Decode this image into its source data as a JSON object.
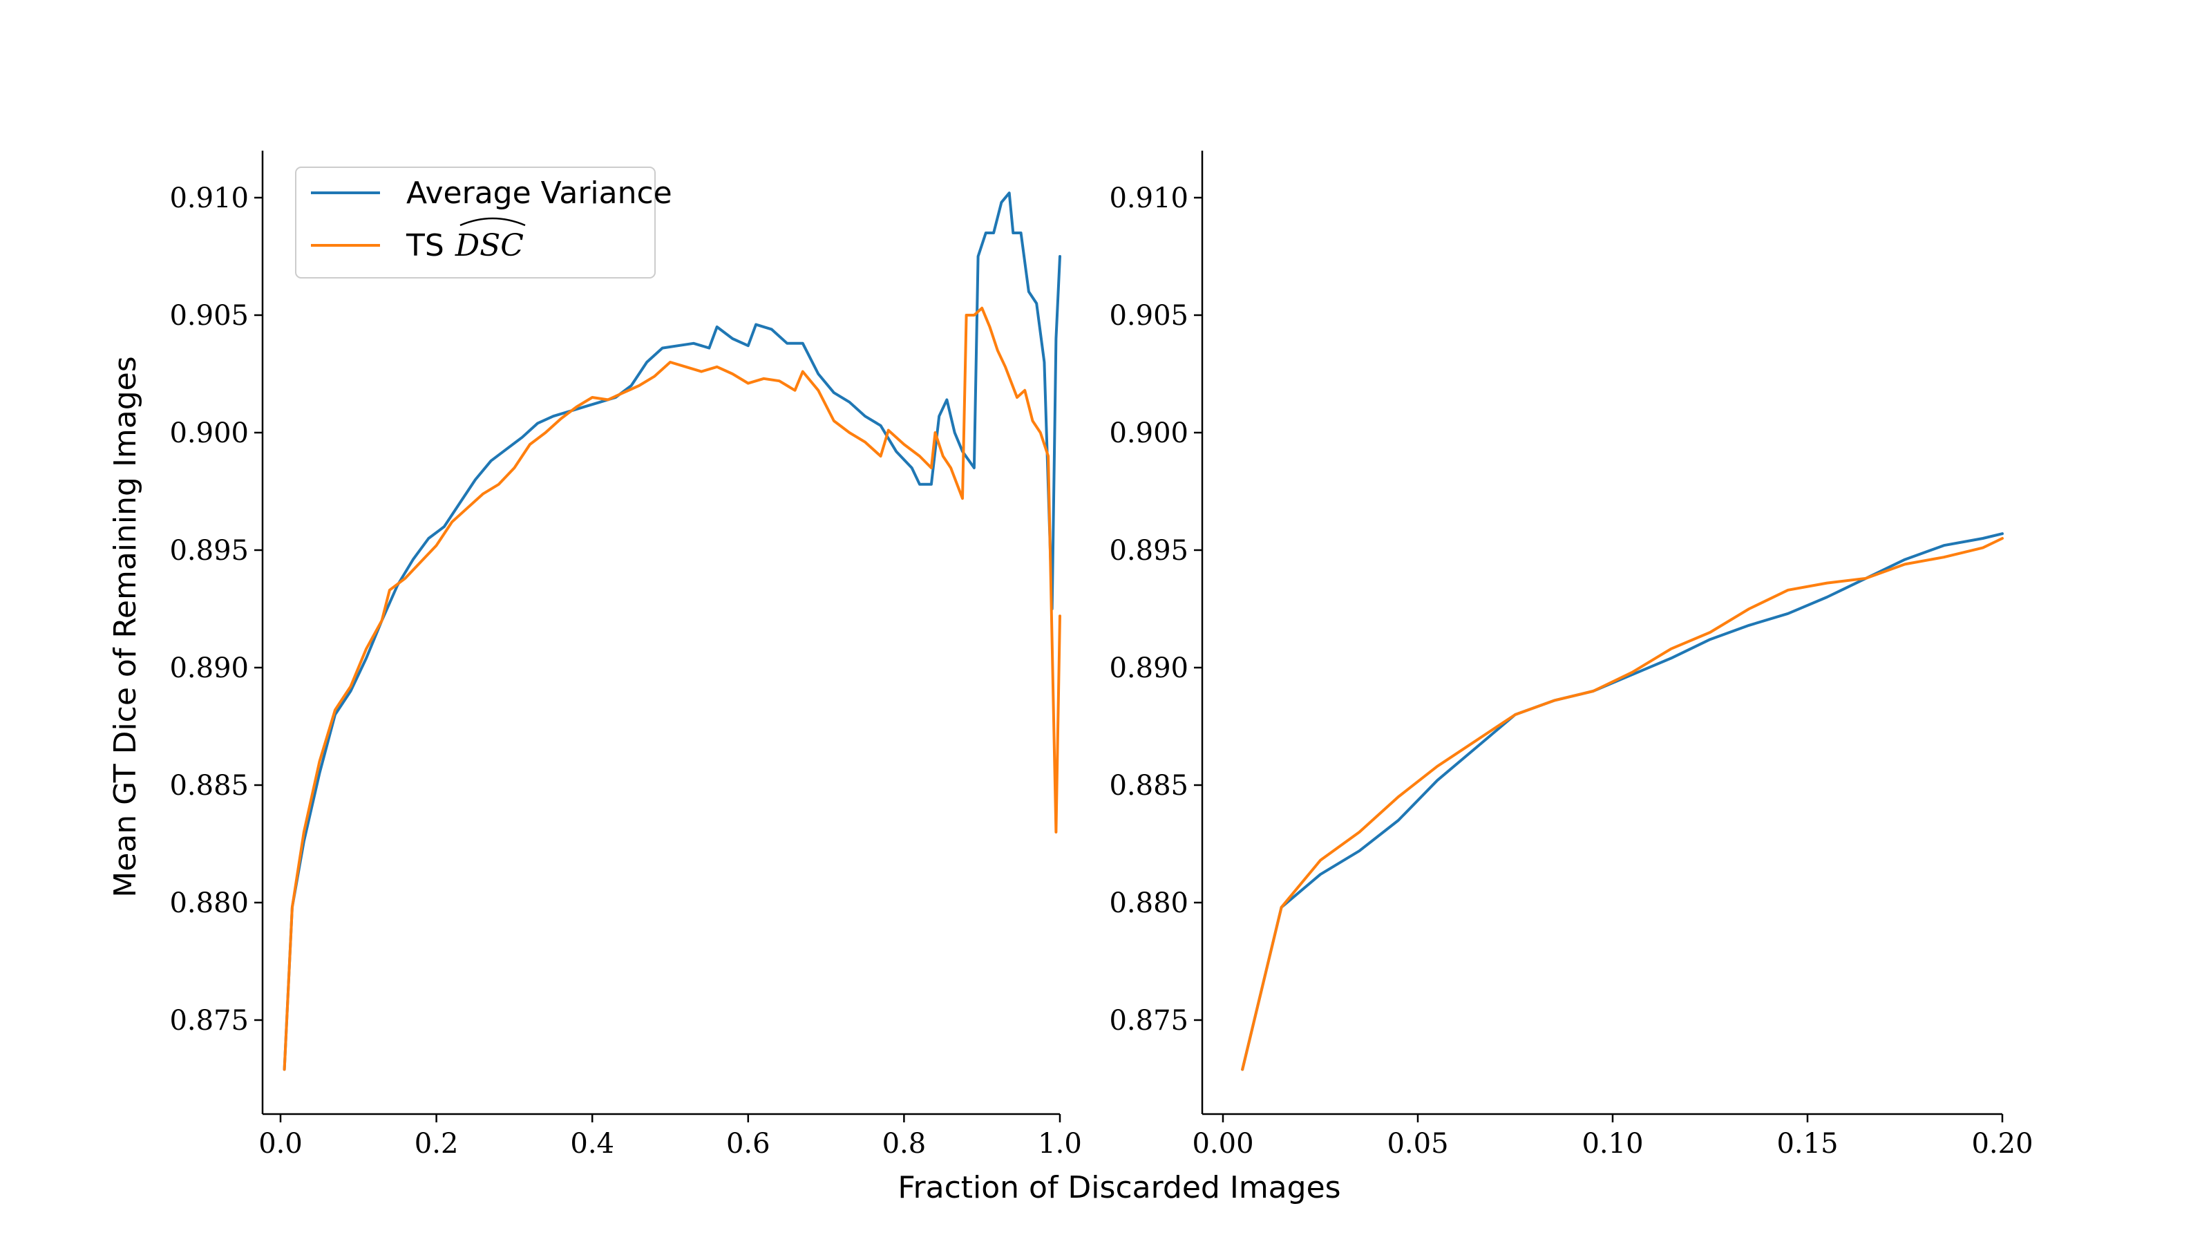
{
  "colors": {
    "series0": "#1f77b4",
    "series1": "#ff7f0e",
    "axis": "#000000",
    "legendBorder": "#cccccc"
  },
  "xlabel": "Fraction of Discarded Images",
  "ylabel": "Mean GT Dice of Remaining Images",
  "legend": {
    "placement": "top-left",
    "entries": [
      {
        "text": "Average Variance"
      },
      {
        "text": "TS",
        "math": "DSC",
        "hat": true
      }
    ]
  },
  "chart_data": [
    {
      "type": "line",
      "xlim": [
        0.0,
        1.0
      ],
      "ylim": [
        0.871,
        0.912
      ],
      "xticks": [
        "0.0",
        "0.2",
        "0.4",
        "0.6",
        "0.8",
        "1.0"
      ],
      "xtick_values": [
        0.0,
        0.2,
        0.4,
        0.6,
        0.8,
        1.0
      ],
      "yticks": [
        "0.875",
        "0.880",
        "0.885",
        "0.890",
        "0.895",
        "0.900",
        "0.905",
        "0.910"
      ],
      "ytick_values": [
        0.875,
        0.88,
        0.885,
        0.89,
        0.895,
        0.9,
        0.905,
        0.91
      ],
      "grid": false,
      "series": [
        {
          "name": "Average Variance",
          "points": [
            [
              0.005,
              0.8729
            ],
            [
              0.015,
              0.8798
            ],
            [
              0.03,
              0.8826
            ],
            [
              0.05,
              0.8855
            ],
            [
              0.07,
              0.888
            ],
            [
              0.09,
              0.889
            ],
            [
              0.11,
              0.8904
            ],
            [
              0.13,
              0.892
            ],
            [
              0.15,
              0.8935
            ],
            [
              0.17,
              0.8946
            ],
            [
              0.19,
              0.8955
            ],
            [
              0.21,
              0.896
            ],
            [
              0.23,
              0.897
            ],
            [
              0.25,
              0.898
            ],
            [
              0.27,
              0.8988
            ],
            [
              0.29,
              0.8993
            ],
            [
              0.31,
              0.8998
            ],
            [
              0.33,
              0.9004
            ],
            [
              0.35,
              0.9007
            ],
            [
              0.37,
              0.9009
            ],
            [
              0.39,
              0.9011
            ],
            [
              0.41,
              0.9013
            ],
            [
              0.43,
              0.9015
            ],
            [
              0.45,
              0.902
            ],
            [
              0.47,
              0.903
            ],
            [
              0.49,
              0.9036
            ],
            [
              0.51,
              0.9037
            ],
            [
              0.53,
              0.9038
            ],
            [
              0.55,
              0.9036
            ],
            [
              0.56,
              0.9045
            ],
            [
              0.58,
              0.904
            ],
            [
              0.6,
              0.9037
            ],
            [
              0.61,
              0.9046
            ],
            [
              0.63,
              0.9044
            ],
            [
              0.65,
              0.9038
            ],
            [
              0.67,
              0.9038
            ],
            [
              0.69,
              0.9025
            ],
            [
              0.71,
              0.9017
            ],
            [
              0.73,
              0.9013
            ],
            [
              0.75,
              0.9007
            ],
            [
              0.77,
              0.9003
            ],
            [
              0.79,
              0.8992
            ],
            [
              0.81,
              0.8985
            ],
            [
              0.82,
              0.8978
            ],
            [
              0.835,
              0.8978
            ],
            [
              0.845,
              0.9007
            ],
            [
              0.855,
              0.9014
            ],
            [
              0.865,
              0.9
            ],
            [
              0.875,
              0.8992
            ],
            [
              0.89,
              0.8985
            ],
            [
              0.895,
              0.9075
            ],
            [
              0.905,
              0.9085
            ],
            [
              0.915,
              0.9085
            ],
            [
              0.925,
              0.9098
            ],
            [
              0.935,
              0.9102
            ],
            [
              0.94,
              0.9085
            ],
            [
              0.95,
              0.9085
            ],
            [
              0.96,
              0.906
            ],
            [
              0.97,
              0.9055
            ],
            [
              0.98,
              0.903
            ],
            [
              0.99,
              0.8925
            ],
            [
              0.995,
              0.904
            ],
            [
              1.0,
              0.9075
            ]
          ]
        },
        {
          "name": "TS DSC",
          "points": [
            [
              0.005,
              0.8729
            ],
            [
              0.015,
              0.8798
            ],
            [
              0.03,
              0.883
            ],
            [
              0.05,
              0.886
            ],
            [
              0.07,
              0.8882
            ],
            [
              0.09,
              0.8892
            ],
            [
              0.11,
              0.8908
            ],
            [
              0.13,
              0.892
            ],
            [
              0.14,
              0.8933
            ],
            [
              0.16,
              0.8938
            ],
            [
              0.18,
              0.8945
            ],
            [
              0.2,
              0.8952
            ],
            [
              0.22,
              0.8962
            ],
            [
              0.24,
              0.8968
            ],
            [
              0.26,
              0.8974
            ],
            [
              0.28,
              0.8978
            ],
            [
              0.3,
              0.8985
            ],
            [
              0.32,
              0.8995
            ],
            [
              0.34,
              0.9
            ],
            [
              0.36,
              0.9006
            ],
            [
              0.38,
              0.9011
            ],
            [
              0.4,
              0.9015
            ],
            [
              0.42,
              0.9014
            ],
            [
              0.44,
              0.9017
            ],
            [
              0.46,
              0.902
            ],
            [
              0.48,
              0.9024
            ],
            [
              0.5,
              0.903
            ],
            [
              0.52,
              0.9028
            ],
            [
              0.54,
              0.9026
            ],
            [
              0.56,
              0.9028
            ],
            [
              0.58,
              0.9025
            ],
            [
              0.6,
              0.9021
            ],
            [
              0.62,
              0.9023
            ],
            [
              0.64,
              0.9022
            ],
            [
              0.66,
              0.9018
            ],
            [
              0.67,
              0.9026
            ],
            [
              0.69,
              0.9018
            ],
            [
              0.71,
              0.9005
            ],
            [
              0.73,
              0.9
            ],
            [
              0.75,
              0.8996
            ],
            [
              0.77,
              0.899
            ],
            [
              0.78,
              0.9001
            ],
            [
              0.8,
              0.8995
            ],
            [
              0.82,
              0.899
            ],
            [
              0.835,
              0.8985
            ],
            [
              0.84,
              0.9
            ],
            [
              0.85,
              0.899
            ],
            [
              0.86,
              0.8985
            ],
            [
              0.875,
              0.8972
            ],
            [
              0.88,
              0.905
            ],
            [
              0.89,
              0.905
            ],
            [
              0.9,
              0.9053
            ],
            [
              0.91,
              0.9045
            ],
            [
              0.92,
              0.9035
            ],
            [
              0.93,
              0.9028
            ],
            [
              0.945,
              0.9015
            ],
            [
              0.955,
              0.9018
            ],
            [
              0.965,
              0.9005
            ],
            [
              0.975,
              0.9
            ],
            [
              0.985,
              0.899
            ],
            [
              0.995,
              0.883
            ],
            [
              1.0,
              0.8922
            ]
          ]
        }
      ]
    },
    {
      "type": "line",
      "xlim": [
        0.0,
        0.2
      ],
      "ylim": [
        0.871,
        0.912
      ],
      "xticks": [
        "0.00",
        "0.05",
        "0.10",
        "0.15",
        "0.20"
      ],
      "xtick_values": [
        0.0,
        0.05,
        0.1,
        0.15,
        0.2
      ],
      "yticks": [
        "0.875",
        "0.880",
        "0.885",
        "0.890",
        "0.895",
        "0.900",
        "0.905",
        "0.910"
      ],
      "ytick_values": [
        0.875,
        0.88,
        0.885,
        0.89,
        0.895,
        0.9,
        0.905,
        0.91
      ],
      "grid": false,
      "series": [
        {
          "name": "Average Variance",
          "points": [
            [
              0.005,
              0.8729
            ],
            [
              0.015,
              0.8798
            ],
            [
              0.025,
              0.8812
            ],
            [
              0.035,
              0.8822
            ],
            [
              0.045,
              0.8835
            ],
            [
              0.055,
              0.8852
            ],
            [
              0.065,
              0.8866
            ],
            [
              0.075,
              0.888
            ],
            [
              0.085,
              0.8886
            ],
            [
              0.095,
              0.889
            ],
            [
              0.105,
              0.8897
            ],
            [
              0.115,
              0.8904
            ],
            [
              0.125,
              0.8912
            ],
            [
              0.135,
              0.8918
            ],
            [
              0.145,
              0.8923
            ],
            [
              0.155,
              0.893
            ],
            [
              0.165,
              0.8938
            ],
            [
              0.175,
              0.8946
            ],
            [
              0.185,
              0.8952
            ],
            [
              0.195,
              0.8955
            ],
            [
              0.2,
              0.8957
            ]
          ]
        },
        {
          "name": "TS DSC",
          "points": [
            [
              0.005,
              0.8729
            ],
            [
              0.015,
              0.8798
            ],
            [
              0.025,
              0.8818
            ],
            [
              0.035,
              0.883
            ],
            [
              0.045,
              0.8845
            ],
            [
              0.055,
              0.8858
            ],
            [
              0.065,
              0.8869
            ],
            [
              0.075,
              0.888
            ],
            [
              0.085,
              0.8886
            ],
            [
              0.095,
              0.889
            ],
            [
              0.105,
              0.8898
            ],
            [
              0.115,
              0.8908
            ],
            [
              0.125,
              0.8915
            ],
            [
              0.135,
              0.8925
            ],
            [
              0.145,
              0.8933
            ],
            [
              0.155,
              0.8936
            ],
            [
              0.165,
              0.8938
            ],
            [
              0.175,
              0.8944
            ],
            [
              0.185,
              0.8947
            ],
            [
              0.195,
              0.8951
            ],
            [
              0.2,
              0.8955
            ]
          ]
        }
      ]
    }
  ]
}
